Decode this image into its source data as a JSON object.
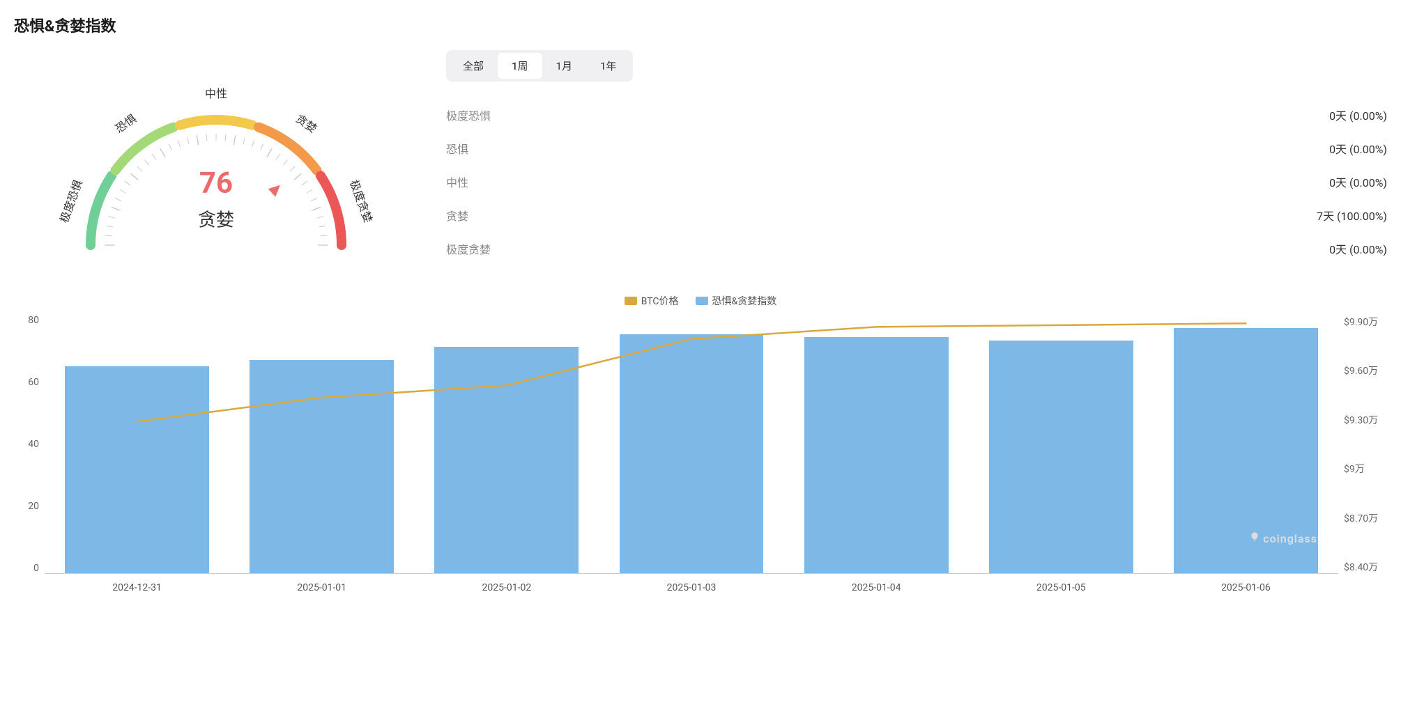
{
  "title": "恐惧&贪婪指数",
  "gauge": {
    "value": 76,
    "label": "贪婪",
    "value_color": "#e96b6b",
    "segments": [
      {
        "label": "极度恐惧",
        "color": "#6fcf97"
      },
      {
        "label": "恐惧",
        "color": "#a3d977"
      },
      {
        "label": "中性",
        "color": "#f2c94c"
      },
      {
        "label": "贪婪",
        "color": "#f2994a"
      },
      {
        "label": "极度贪婪",
        "color": "#eb5757"
      }
    ],
    "needle_angle": 140,
    "radius": 180,
    "stroke_width": 14,
    "tick_color": "#cccccc"
  },
  "tabs": {
    "items": [
      "全部",
      "1周",
      "1月",
      "1年"
    ],
    "active_index": 1
  },
  "stats": [
    {
      "label": "极度恐惧",
      "value": "0天 (0.00%)"
    },
    {
      "label": "恐惧",
      "value": "0天 (0.00%)"
    },
    {
      "label": "中性",
      "value": "0天 (0.00%)"
    },
    {
      "label": "贪婪",
      "value": "7天 (100.00%)"
    },
    {
      "label": "极度贪婪",
      "value": "0天 (0.00%)"
    }
  ],
  "chart": {
    "type": "bar+line",
    "legend": [
      {
        "label": "BTC价格",
        "color": "#d9a93e"
      },
      {
        "label": "恐惧&贪婪指数",
        "color": "#7eb8e6"
      }
    ],
    "categories": [
      "2024-12-31",
      "2025-01-01",
      "2025-01-02",
      "2025-01-03",
      "2025-01-04",
      "2025-01-05",
      "2025-01-06"
    ],
    "bar_series": {
      "name": "恐惧&贪婪指数",
      "color": "#7eb8e6",
      "values": [
        64,
        66,
        70,
        74,
        73,
        72,
        76
      ]
    },
    "line_series": {
      "name": "BTC价格",
      "color": "#d9a93e",
      "stroke_width": 2.5,
      "values": [
        92800,
        94200,
        94900,
        97600,
        98300,
        98400,
        98500
      ]
    },
    "y_left": {
      "min": 0,
      "max": 80,
      "step": 20,
      "labels": [
        "80",
        "60",
        "40",
        "20",
        "0"
      ]
    },
    "y_right": {
      "min": 84000,
      "max": 99000,
      "step": 3000,
      "labels": [
        "$9.90万",
        "$9.60万",
        "$9.30万",
        "$9万",
        "$8.70万",
        "$8.40万"
      ]
    },
    "bar_width_pct": 78,
    "background_color": "#ffffff",
    "axis_color": "#cccccc",
    "label_fontsize": 14,
    "label_color": "#555555"
  },
  "watermark": "coinglass"
}
